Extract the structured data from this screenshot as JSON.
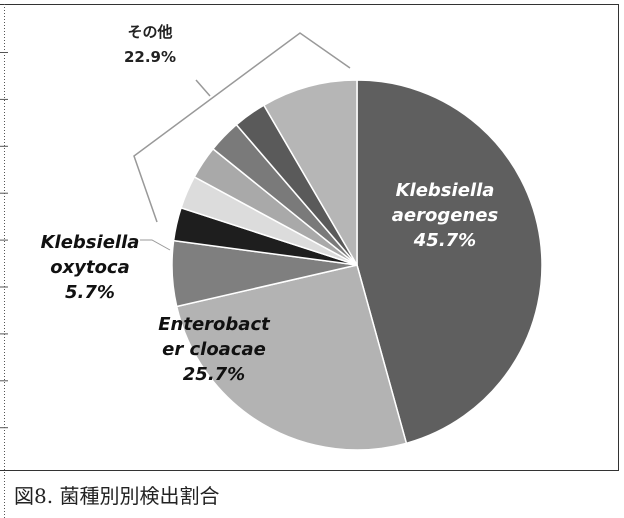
{
  "chart_data": {
    "type": "pie",
    "caption": "図8. 菌種別別検出割合",
    "categories": [
      "Klebsiella aerogenes",
      "Enterobacter cloacae",
      "Klebsiella oxytoca",
      null,
      null,
      null,
      null,
      null,
      null
    ],
    "values": [
      45.7,
      25.7,
      5.7,
      2.9,
      2.9,
      2.9,
      2.9,
      2.9,
      8.4
    ],
    "value_labels": [
      "45.7%",
      "25.7%",
      "5.7%",
      null,
      null,
      null,
      null,
      null,
      null
    ],
    "colors": [
      "#5f5f5f",
      "#b3b3b3",
      "#7f7f7f",
      "#1e1e1e",
      "#dcdcdc",
      "#a9a9a9",
      "#7a7a7a",
      "#5a5a5a",
      "#b6b6b6"
    ],
    "annotations": [
      {
        "text": "その他",
        "value": 22.9,
        "value_label": "22.9%"
      }
    ]
  }
}
